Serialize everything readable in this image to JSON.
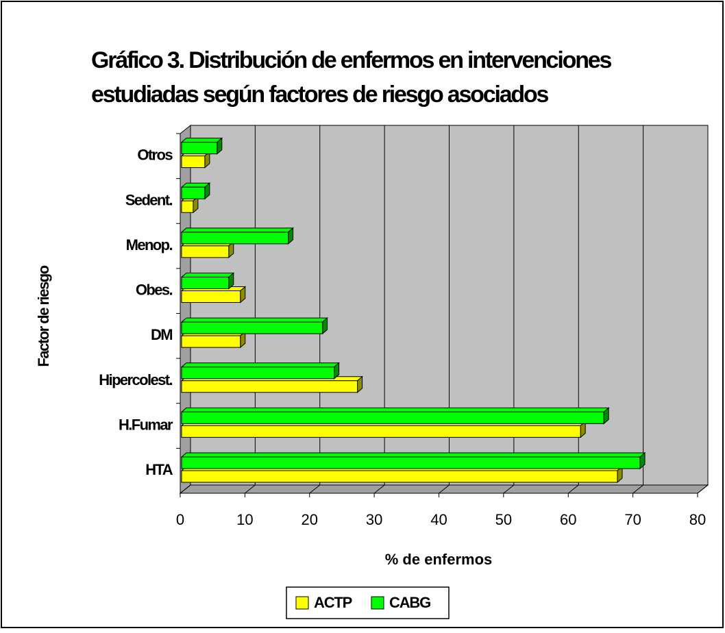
{
  "chart_data": {
    "type": "bar",
    "orientation": "horizontal",
    "title": [
      "Gráfico 3. Distribución de enfermos en intervenciones",
      "estudiadas según factores de riesgo asociados"
    ],
    "categories": [
      "HTA",
      "H.Fumar",
      "Hipercolest.",
      "DM",
      "Obes.",
      "Menop.",
      "Sedent.",
      "Otros"
    ],
    "series": [
      {
        "name": "ACTP",
        "color": "#ffff00",
        "values": [
          67.6,
          61.9,
          27.4,
          9.3,
          9.3,
          7.5,
          2,
          3.8
        ]
      },
      {
        "name": "CABG",
        "color": "#00ff00",
        "values": [
          71.1,
          65.5,
          23.8,
          22,
          7.5,
          16.7,
          3.8,
          5.7
        ]
      }
    ],
    "xlim": [
      0,
      80
    ],
    "xticks": [
      0,
      10,
      20,
      30,
      40,
      50,
      60,
      70,
      80
    ],
    "x_label": "% de enfermos",
    "y_label": "Factor de riesgo",
    "grid": true,
    "legend": "bottom"
  }
}
